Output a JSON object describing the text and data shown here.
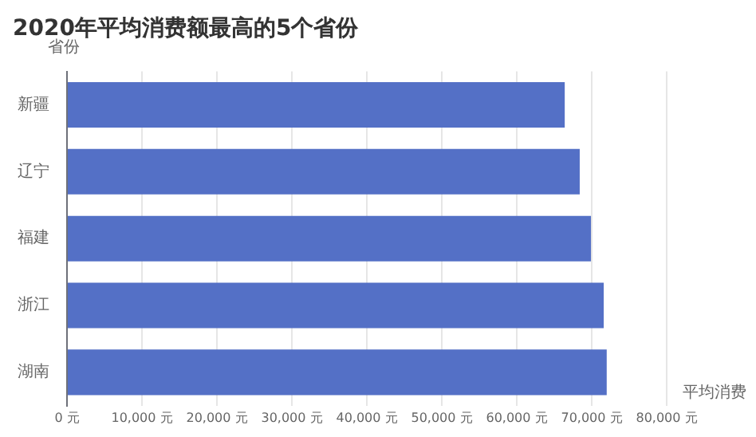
{
  "chart_data": {
    "type": "bar",
    "orientation": "horizontal",
    "title": "2020年平均消费额最高的5个省份",
    "xlabel": "平均消费",
    "ylabel": "省份",
    "categories": [
      "新疆",
      "辽宁",
      "福建",
      "浙江",
      "湖南"
    ],
    "values": [
      66400,
      68400,
      69900,
      71600,
      72000
    ],
    "color": "#5470c6",
    "xlim": [
      0,
      80000
    ],
    "xticks": [
      {
        "value": 0,
        "label": "0 元"
      },
      {
        "value": 10000,
        "label": "10,000 元"
      },
      {
        "value": 20000,
        "label": "20,000 元"
      },
      {
        "value": 30000,
        "label": "30,000 元"
      },
      {
        "value": 40000,
        "label": "40,000 元"
      },
      {
        "value": 50000,
        "label": "50,000 元"
      },
      {
        "value": 60000,
        "label": "60,000 元"
      },
      {
        "value": 70000,
        "label": "70,000 元"
      },
      {
        "value": 80000,
        "label": "80,000 元"
      }
    ],
    "grid": "x",
    "legend": false
  }
}
